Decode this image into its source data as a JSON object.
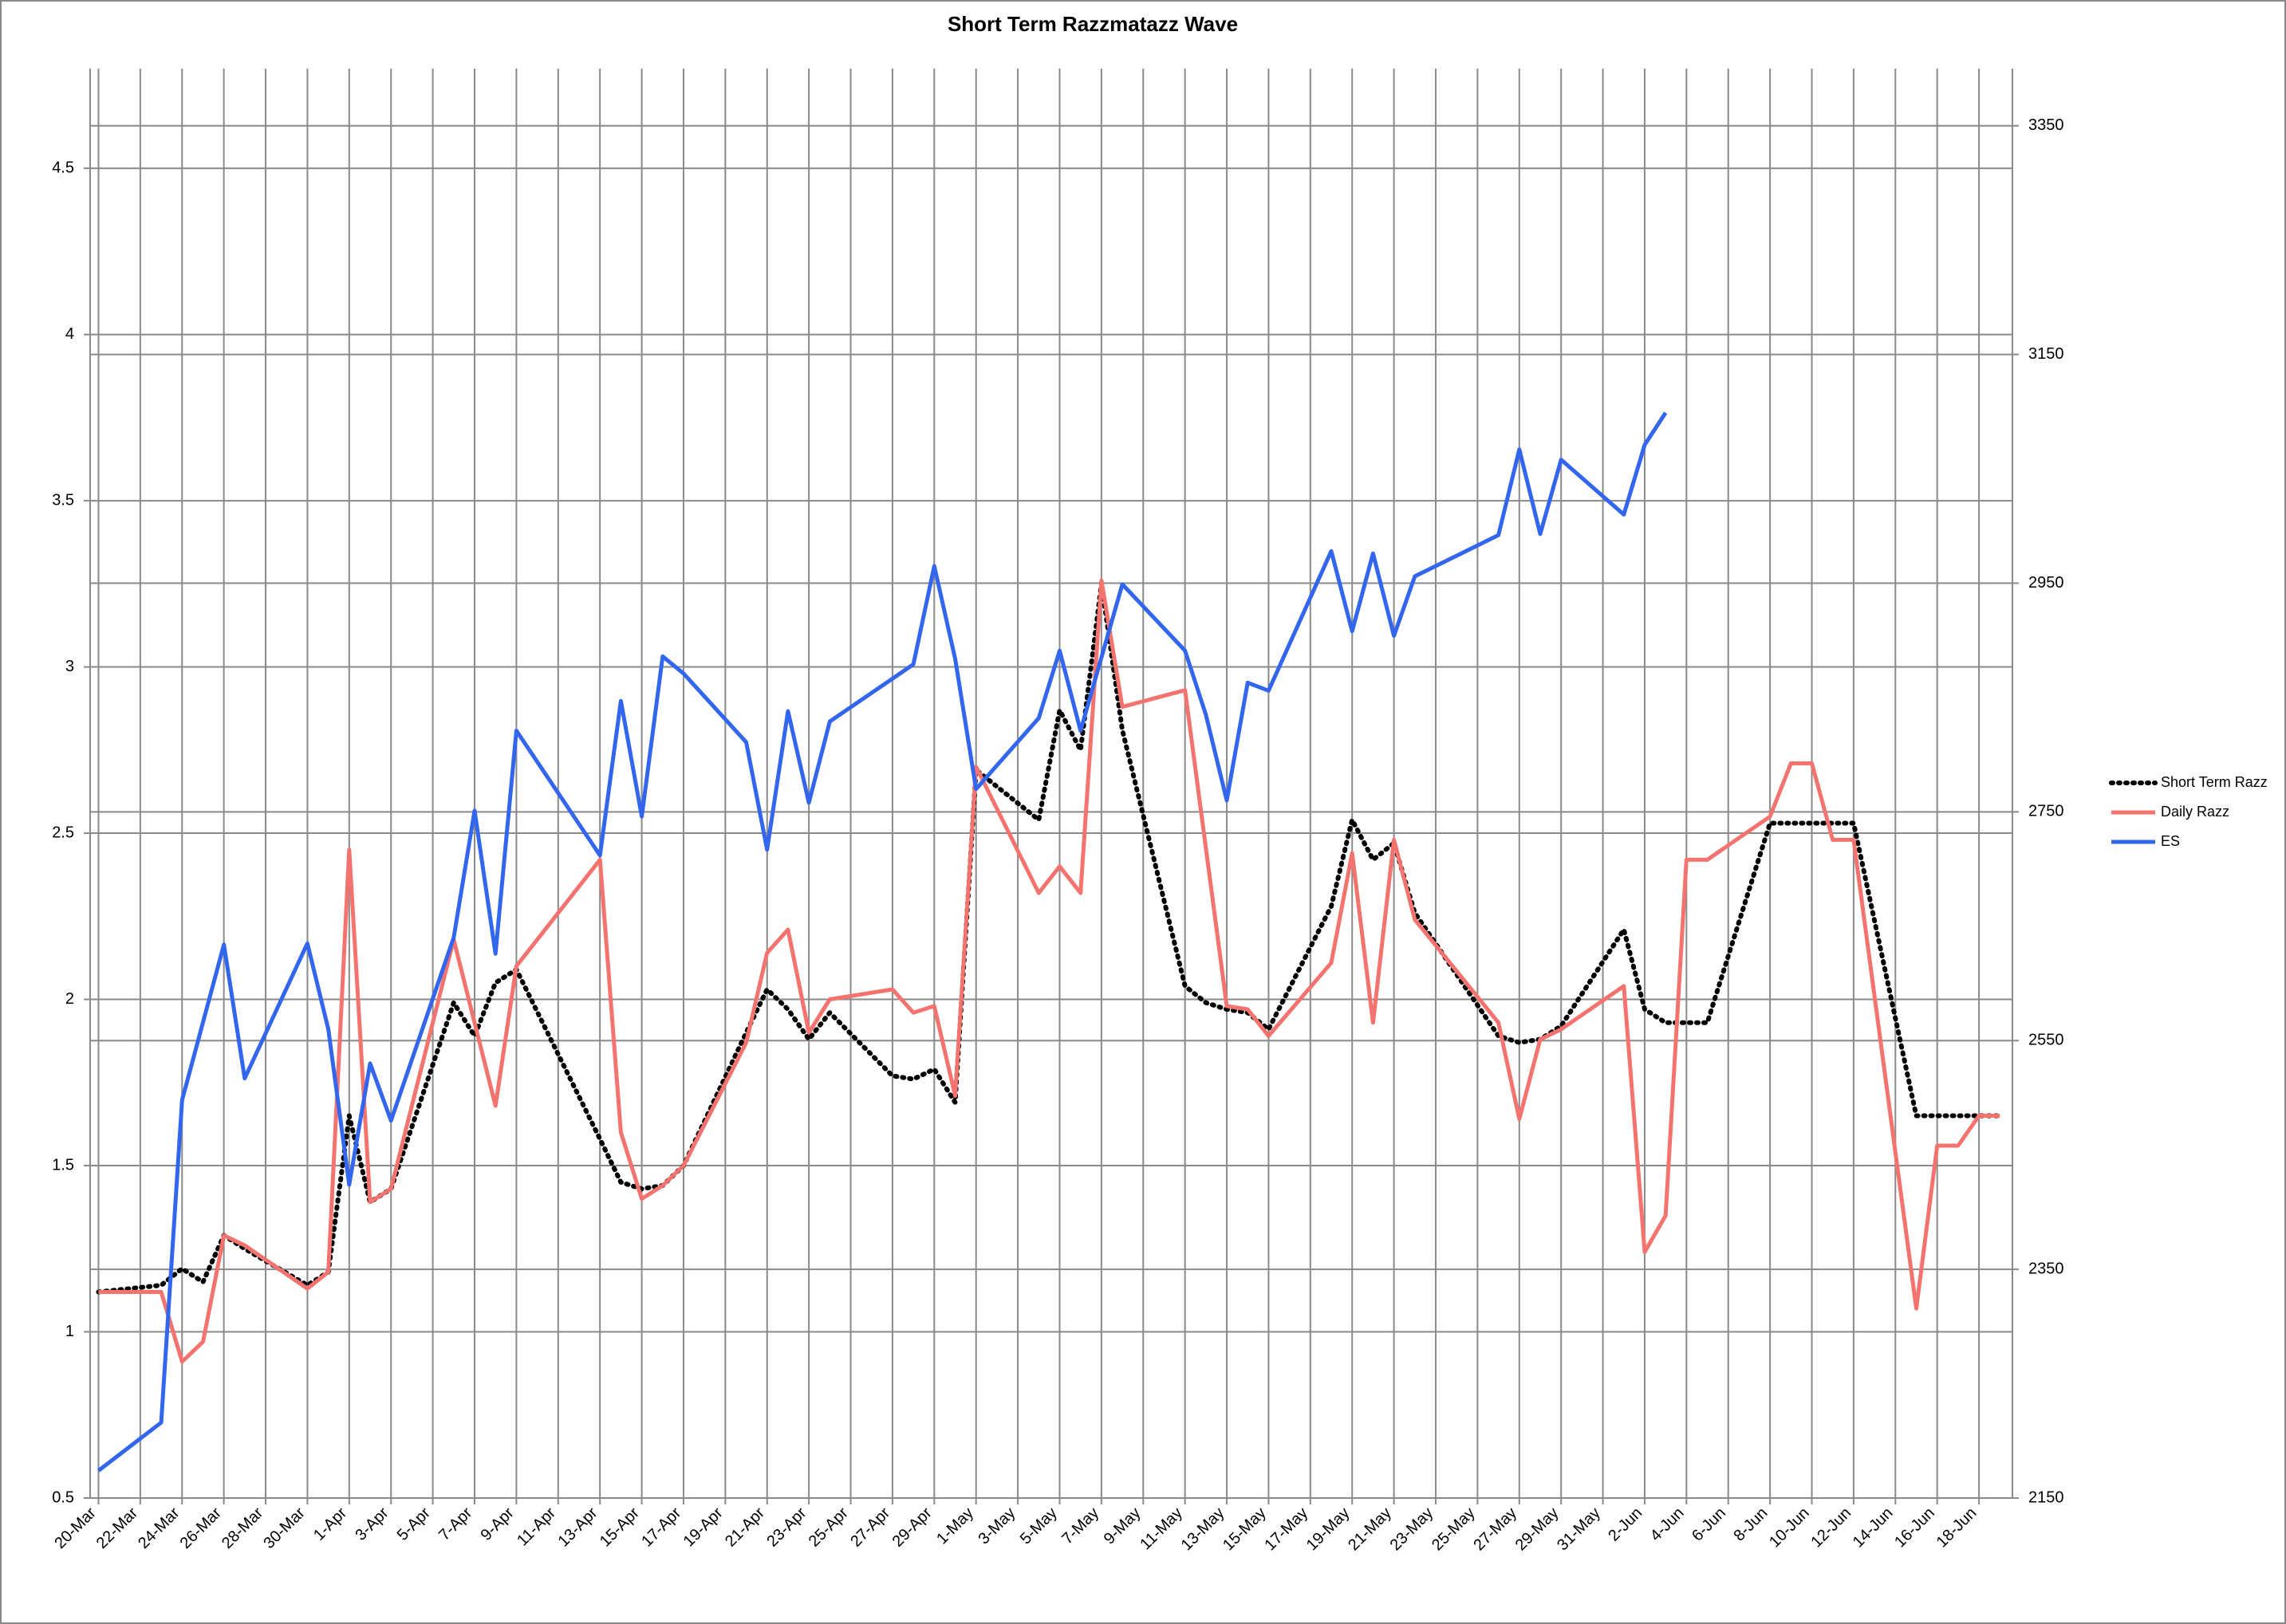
{
  "chart_data": {
    "type": "line",
    "title": "Short Term Razzmatazz Wave",
    "xlim": [
      -0.4,
      91.6
    ],
    "xticks": [
      {
        "value": 0,
        "label": "20-Mar"
      },
      {
        "value": 2,
        "label": "22-Mar"
      },
      {
        "value": 4,
        "label": "24-Mar"
      },
      {
        "value": 6,
        "label": "26-Mar"
      },
      {
        "value": 8,
        "label": "28-Mar"
      },
      {
        "value": 10,
        "label": "30-Mar"
      },
      {
        "value": 12,
        "label": "1-Apr"
      },
      {
        "value": 14,
        "label": "3-Apr"
      },
      {
        "value": 16,
        "label": "5-Apr"
      },
      {
        "value": 18,
        "label": "7-Apr"
      },
      {
        "value": 20,
        "label": "9-Apr"
      },
      {
        "value": 22,
        "label": "11-Apr"
      },
      {
        "value": 24,
        "label": "13-Apr"
      },
      {
        "value": 26,
        "label": "15-Apr"
      },
      {
        "value": 28,
        "label": "17-Apr"
      },
      {
        "value": 30,
        "label": "19-Apr"
      },
      {
        "value": 32,
        "label": "21-Apr"
      },
      {
        "value": 34,
        "label": "23-Apr"
      },
      {
        "value": 36,
        "label": "25-Apr"
      },
      {
        "value": 38,
        "label": "27-Apr"
      },
      {
        "value": 40,
        "label": "29-Apr"
      },
      {
        "value": 42,
        "label": "1-May"
      },
      {
        "value": 44,
        "label": "3-May"
      },
      {
        "value": 46,
        "label": "5-May"
      },
      {
        "value": 48,
        "label": "7-May"
      },
      {
        "value": 50,
        "label": "9-May"
      },
      {
        "value": 52,
        "label": "11-May"
      },
      {
        "value": 54,
        "label": "13-May"
      },
      {
        "value": 56,
        "label": "15-May"
      },
      {
        "value": 58,
        "label": "17-May"
      },
      {
        "value": 60,
        "label": "19-May"
      },
      {
        "value": 62,
        "label": "21-May"
      },
      {
        "value": 64,
        "label": "23-May"
      },
      {
        "value": 66,
        "label": "25-May"
      },
      {
        "value": 68,
        "label": "27-May"
      },
      {
        "value": 70,
        "label": "29-May"
      },
      {
        "value": 72,
        "label": "31-May"
      },
      {
        "value": 74,
        "label": "2-Jun"
      },
      {
        "value": 76,
        "label": "4-Jun"
      },
      {
        "value": 78,
        "label": "6-Jun"
      },
      {
        "value": 80,
        "label": "8-Jun"
      },
      {
        "value": 82,
        "label": "10-Jun"
      },
      {
        "value": 84,
        "label": "12-Jun"
      },
      {
        "value": 86,
        "label": "14-Jun"
      },
      {
        "value": 88,
        "label": "16-Jun"
      },
      {
        "value": 90,
        "label": "18-Jun"
      }
    ],
    "ylim": [
      0.5,
      4.8
    ],
    "yticks": [
      0.5,
      1,
      1.5,
      2,
      2.5,
      3,
      3.5,
      4,
      4.5
    ],
    "y2lim": [
      2150,
      3400
    ],
    "y2ticks": [
      2150,
      2350,
      2550,
      2750,
      2950,
      3150,
      3350
    ],
    "grid": true,
    "legend": "right",
    "series": [
      {
        "name": "Short Term Razz",
        "color": "#000000",
        "style": "dotted",
        "x": [
          0,
          3,
          4,
          5,
          6,
          7,
          10,
          11,
          12,
          13,
          14,
          17,
          18,
          19,
          20,
          24,
          25,
          26,
          27,
          28,
          31,
          32,
          33,
          34,
          35,
          38,
          39,
          40,
          41,
          42,
          45,
          46,
          47,
          48,
          49,
          52,
          53,
          54,
          55,
          56,
          59,
          60,
          61,
          62,
          63,
          67,
          68,
          69,
          70,
          73,
          74,
          75,
          76,
          77,
          80,
          81,
          82,
          83,
          84,
          87,
          88,
          89,
          90,
          91
        ],
        "values": [
          1.12,
          1.14,
          1.19,
          1.15,
          1.29,
          1.25,
          1.14,
          1.18,
          1.65,
          1.39,
          1.43,
          1.99,
          1.89,
          2.05,
          2.09,
          1.58,
          1.45,
          1.43,
          1.44,
          1.5,
          1.9,
          2.03,
          1.97,
          1.88,
          1.96,
          1.77,
          1.76,
          1.79,
          1.69,
          2.69,
          2.54,
          2.87,
          2.75,
          3.25,
          2.81,
          2.04,
          1.99,
          1.97,
          1.96,
          1.91,
          2.28,
          2.54,
          2.42,
          2.47,
          2.26,
          1.89,
          1.87,
          1.88,
          1.92,
          2.21,
          1.97,
          1.93,
          1.93,
          1.93,
          2.53,
          2.53,
          2.53,
          2.53,
          2.53,
          1.65,
          1.65,
          1.65,
          1.65,
          1.65
        ]
      },
      {
        "name": "Daily Razz",
        "color": "#f4736f",
        "style": "solid",
        "x": [
          0,
          3,
          4,
          5,
          6,
          7,
          10,
          11,
          12,
          13,
          14,
          17,
          18,
          19,
          20,
          24,
          25,
          26,
          27,
          28,
          31,
          32,
          33,
          34,
          35,
          38,
          39,
          40,
          41,
          42,
          45,
          46,
          47,
          48,
          49,
          52,
          54,
          55,
          56,
          59,
          60,
          61,
          62,
          63,
          67,
          68,
          69,
          70,
          73,
          74,
          75,
          76,
          77,
          80,
          81,
          82,
          83,
          84,
          87,
          88,
          89,
          90,
          91
        ],
        "values": [
          1.12,
          1.12,
          0.91,
          0.97,
          1.29,
          1.26,
          1.13,
          1.18,
          2.45,
          1.39,
          1.43,
          2.18,
          1.93,
          1.68,
          2.1,
          2.42,
          1.6,
          1.4,
          1.44,
          1.5,
          1.87,
          2.14,
          2.21,
          1.9,
          2.0,
          2.03,
          1.96,
          1.98,
          1.71,
          2.7,
          2.32,
          2.4,
          2.32,
          3.26,
          2.88,
          2.93,
          1.98,
          1.97,
          1.89,
          2.11,
          2.44,
          1.93,
          2.48,
          2.24,
          1.93,
          1.64,
          1.88,
          1.91,
          2.04,
          1.24,
          1.35,
          2.42,
          2.42,
          2.55,
          2.71,
          2.71,
          2.48,
          2.48,
          1.07,
          1.56,
          1.56,
          1.65,
          1.65
        ]
      },
      {
        "name": "ES",
        "color": "#3366ee",
        "style": "solid",
        "axis": "y2",
        "x": [
          0,
          3,
          4,
          6,
          7,
          10,
          11,
          12,
          13,
          14,
          17,
          18,
          19,
          20,
          24,
          25,
          26,
          27,
          28,
          31,
          32,
          33,
          34,
          35,
          39,
          40,
          41,
          42,
          45,
          46,
          47,
          49,
          52,
          53,
          54,
          55,
          56,
          59,
          60,
          61,
          62,
          63,
          67,
          68,
          69,
          70,
          73,
          74,
          75
        ],
        "values": [
          2174,
          2216,
          2498,
          2634,
          2517,
          2635,
          2560,
          2424,
          2530,
          2480,
          2640,
          2751,
          2626,
          2821,
          2712,
          2847,
          2746,
          2886,
          2871,
          2811,
          2717,
          2838,
          2758,
          2829,
          2879,
          2965,
          2884,
          2770,
          2832,
          2891,
          2821,
          2949,
          2891,
          2835,
          2760,
          2863,
          2856,
          2978,
          2908,
          2976,
          2904,
          2956,
          2992,
          3067,
          2993,
          3058,
          3010,
          3071,
          3099
        ]
      }
    ]
  }
}
